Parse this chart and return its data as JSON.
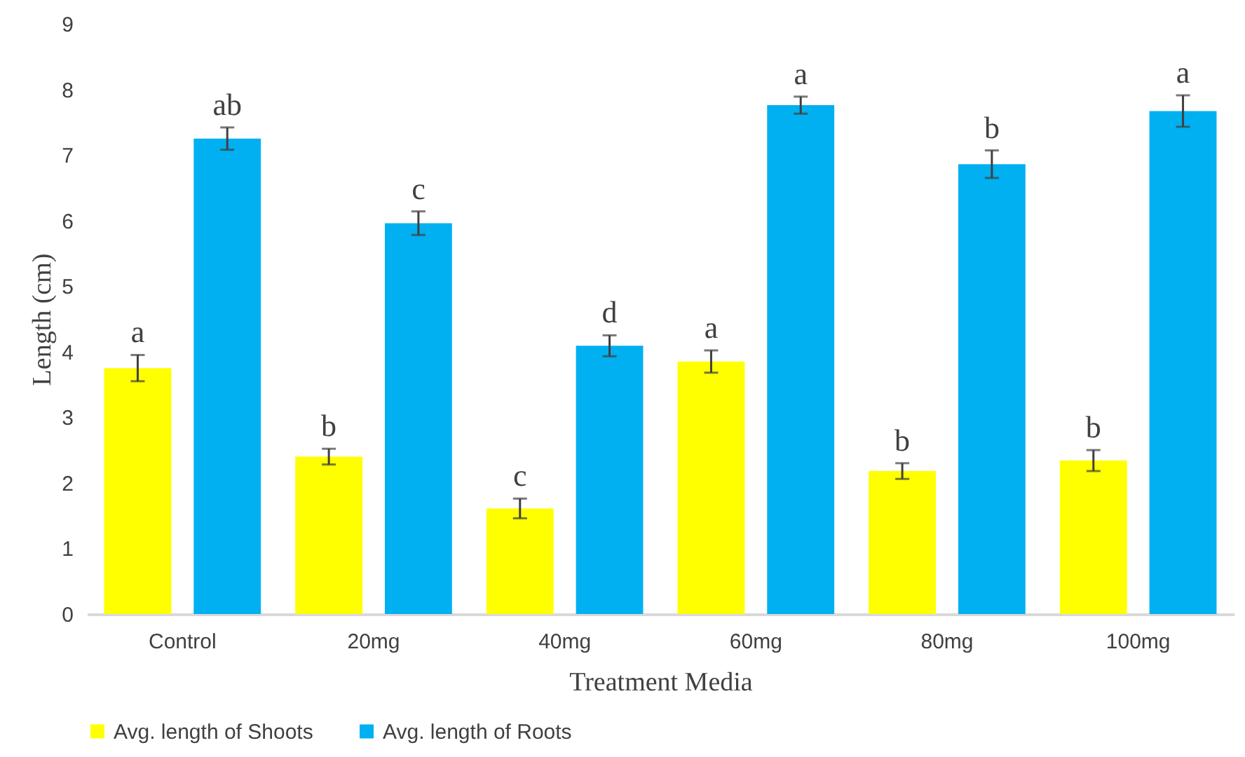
{
  "chart_data": {
    "type": "bar",
    "xlabel": "Treatment Media",
    "ylabel": "Length (cm)",
    "categories": [
      "Control",
      "20mg",
      "40mg",
      "60mg",
      "80mg",
      "100mg"
    ],
    "series": [
      {
        "name": "Avg. length of Shoots",
        "color": "#ffff00",
        "values": [
          3.75,
          2.4,
          1.61,
          3.85,
          2.18,
          2.34
        ],
        "errors": [
          0.2,
          0.12,
          0.15,
          0.17,
          0.12,
          0.16
        ],
        "value_labels": [
          "a",
          "b",
          "c",
          "a",
          "b",
          "b"
        ]
      },
      {
        "name": "Avg. length of Roots",
        "color": "#00b0f0",
        "values": [
          7.25,
          5.96,
          4.09,
          7.76,
          6.86,
          7.67
        ],
        "errors": [
          0.17,
          0.18,
          0.16,
          0.13,
          0.21,
          0.24
        ],
        "value_labels": [
          "ab",
          "c",
          "d",
          "a",
          "b",
          "a"
        ]
      }
    ],
    "ylim": [
      0,
      9
    ],
    "yticks": [
      0,
      1,
      2,
      3,
      4,
      5,
      6,
      7,
      8,
      9
    ],
    "grid": false,
    "legend": "bottom"
  }
}
